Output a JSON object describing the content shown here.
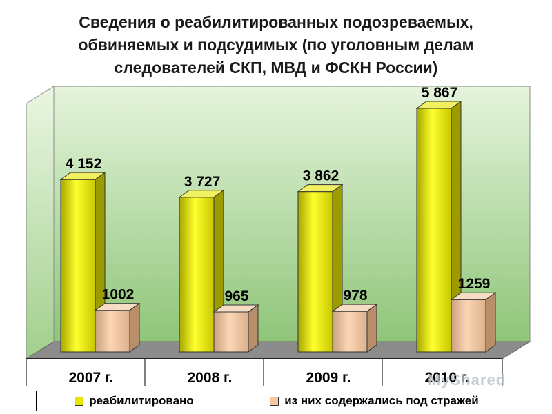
{
  "header": {
    "title_lines": [
      "Сведения о реабилитированных подозреваемых,",
      "обвиняемых и подсудимых (по уголовным делам",
      "следователей СКП, МВД и ФСКН России)"
    ]
  },
  "chart_data": {
    "type": "bar",
    "title": "Сведения о реабилитированных подозреваемых, обвиняемых и подсудимых (по уголовным делам следователей СКП, МВД и ФСКН России)",
    "categories": [
      "2007 г.",
      "2008 г.",
      "2009 г.",
      "2010 г."
    ],
    "series": [
      {
        "name": "реабилитировано",
        "values": [
          4152,
          3727,
          3862,
          5867
        ],
        "labels": [
          "4 152",
          "3 727",
          "3 862",
          "5 867"
        ],
        "color": "#e6e600"
      },
      {
        "name": "из них содержались под стражей",
        "values": [
          1002,
          965,
          978,
          1259
        ],
        "labels": [
          "1002",
          "965",
          "978",
          "1259"
        ],
        "color": "#f2c9a5"
      }
    ],
    "ylim": [
      0,
      6500
    ],
    "grid": false,
    "legend_position": "bottom",
    "background": "#b9dcaa"
  },
  "watermark": "MyShared"
}
